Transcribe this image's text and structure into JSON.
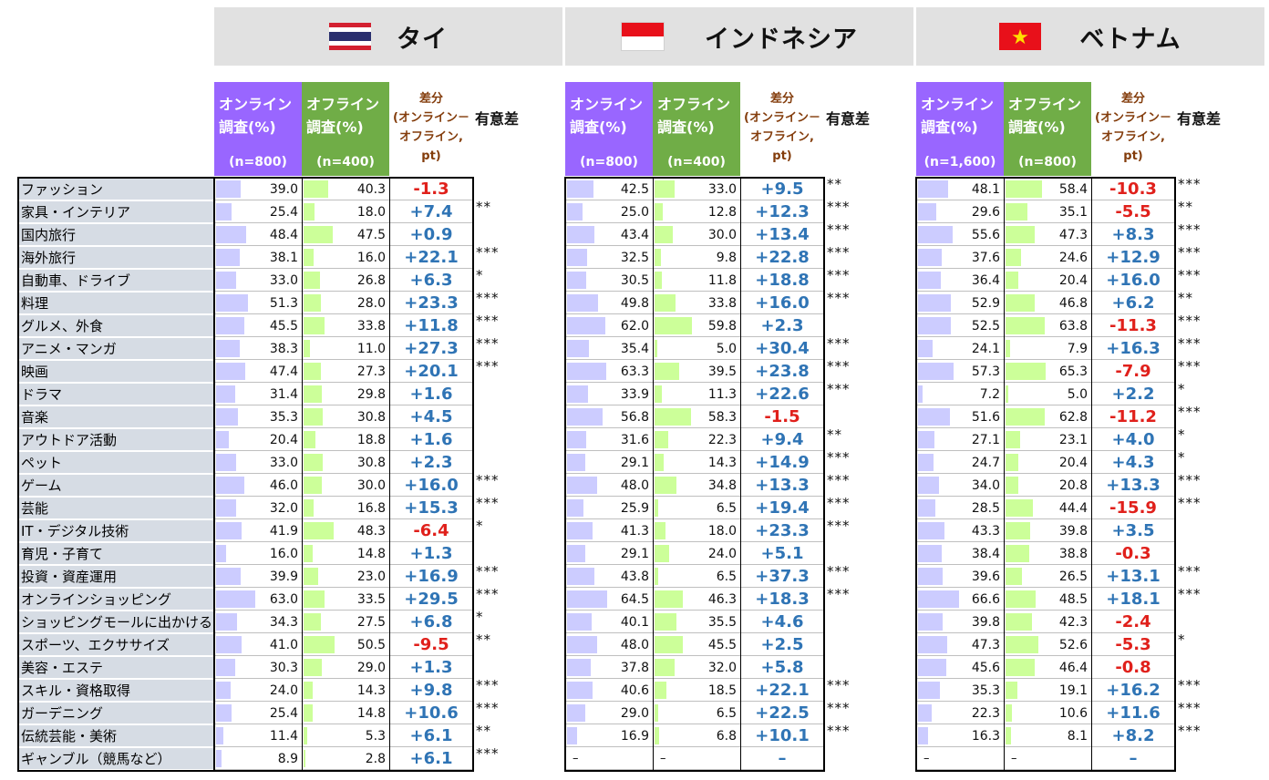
{
  "countries": [
    {
      "key": "thailand",
      "name": "タイ",
      "n_online": "(n=800)",
      "n_offline": "(n=400)"
    },
    {
      "key": "indonesia",
      "name": "インドネシア",
      "n_online": "(n=800)",
      "n_offline": "(n=400)"
    },
    {
      "key": "vietnam",
      "name": "ベトナム",
      "n_online": "(n=1,600)",
      "n_offline": "(n=800)"
    }
  ],
  "headers": {
    "online_l1": "オンライン",
    "online_l2": "調査(%)",
    "offline_l1": "オフライン",
    "offline_l2": "調査(%)",
    "diff_l1": "差分",
    "diff_l2": "(オンライン－",
    "diff_l3": "オフライン,",
    "diff_l4": "pt)",
    "sig": "有意差"
  },
  "colors": {
    "online_header": "#9966ff",
    "offline_header": "#70ad47",
    "online_bar": "#ccccff",
    "offline_bar": "#ccff99",
    "positive": "#2f74b5",
    "negative": "#e0201b",
    "category_bg": "#d6dce4",
    "country_bg": "#e1e1e1"
  },
  "chart_data": {
    "type": "table",
    "categories": [
      "ファッション",
      "家具・インテリア",
      "国内旅行",
      "海外旅行",
      "自動車、ドライブ",
      "料理",
      "グルメ、外食",
      "アニメ・マンガ",
      "映画",
      "ドラマ",
      "音楽",
      "アウトドア活動",
      "ペット",
      "ゲーム",
      "芸能",
      "IT・デジタル技術",
      "育児・子育て",
      "投資・資産運用",
      "オンラインショッピング",
      "ショッピングモールに出かける",
      "スポーツ、エクササイズ",
      "美容・エステ",
      "スキル・資格取得",
      "ガーデニング",
      "伝統芸能・美術",
      "ギャンブル（競馬など）"
    ],
    "thailand": {
      "online": [
        "39.0",
        "25.4",
        "48.4",
        "38.1",
        "33.0",
        "51.3",
        "45.5",
        "38.3",
        "47.4",
        "31.4",
        "35.3",
        "20.4",
        "33.0",
        "46.0",
        "32.0",
        "41.9",
        "16.0",
        "39.9",
        "63.0",
        "34.3",
        "41.0",
        "30.3",
        "24.0",
        "25.4",
        "11.4",
        "8.9"
      ],
      "offline": [
        "40.3",
        "18.0",
        "47.5",
        "16.0",
        "26.8",
        "28.0",
        "33.8",
        "11.0",
        "27.3",
        "29.8",
        "30.8",
        "18.8",
        "30.8",
        "30.0",
        "16.8",
        "48.3",
        "14.8",
        "23.0",
        "33.5",
        "27.5",
        "50.5",
        "29.0",
        "14.3",
        "14.8",
        "5.3",
        "2.8"
      ],
      "diff": [
        "-1.3",
        "+7.4",
        "+0.9",
        "+22.1",
        "+6.3",
        "+23.3",
        "+11.8",
        "+27.3",
        "+20.1",
        "+1.6",
        "+4.5",
        "+1.6",
        "+2.3",
        "+16.0",
        "+15.3",
        "-6.4",
        "+1.3",
        "+16.9",
        "+29.5",
        "+6.8",
        "-9.5",
        "+1.3",
        "+9.8",
        "+10.6",
        "+6.1",
        "+6.1"
      ],
      "sig": [
        "",
        "**",
        "",
        "***",
        "*",
        "***",
        "***",
        "***",
        "***",
        "",
        "",
        "",
        "",
        "***",
        "***",
        "*",
        "",
        "***",
        "***",
        "*",
        "**",
        "",
        "***",
        "***",
        "**",
        "***"
      ]
    },
    "indonesia": {
      "online": [
        "42.5",
        "25.0",
        "43.4",
        "32.5",
        "30.5",
        "49.8",
        "62.0",
        "35.4",
        "63.3",
        "33.9",
        "56.8",
        "31.6",
        "29.1",
        "48.0",
        "25.9",
        "41.3",
        "29.1",
        "43.8",
        "64.5",
        "40.1",
        "48.0",
        "37.8",
        "40.6",
        "29.0",
        "16.9",
        "–"
      ],
      "offline": [
        "33.0",
        "12.8",
        "30.0",
        "9.8",
        "11.8",
        "33.8",
        "59.8",
        "5.0",
        "39.5",
        "11.3",
        "58.3",
        "22.3",
        "14.3",
        "34.8",
        "6.5",
        "18.0",
        "24.0",
        "6.5",
        "46.3",
        "35.5",
        "45.5",
        "32.0",
        "18.5",
        "6.5",
        "6.8",
        "–"
      ],
      "diff": [
        "+9.5",
        "+12.3",
        "+13.4",
        "+22.8",
        "+18.8",
        "+16.0",
        "+2.3",
        "+30.4",
        "+23.8",
        "+22.6",
        "-1.5",
        "+9.4",
        "+14.9",
        "+13.3",
        "+19.4",
        "+23.3",
        "+5.1",
        "+37.3",
        "+18.3",
        "+4.6",
        "+2.5",
        "+5.8",
        "+22.1",
        "+22.5",
        "+10.1",
        "–"
      ],
      "sig": [
        "**",
        "***",
        "***",
        "***",
        "***",
        "***",
        "",
        "***",
        "***",
        "***",
        "",
        "**",
        "***",
        "***",
        "***",
        "***",
        "",
        "***",
        "***",
        "",
        "",
        "",
        "***",
        "***",
        "***",
        ""
      ]
    },
    "vietnam": {
      "online": [
        "48.1",
        "29.6",
        "55.6",
        "37.6",
        "36.4",
        "52.9",
        "52.5",
        "24.1",
        "57.3",
        "7.2",
        "51.6",
        "27.1",
        "24.7",
        "34.0",
        "28.5",
        "43.3",
        "38.4",
        "39.6",
        "66.6",
        "39.8",
        "47.3",
        "45.6",
        "35.3",
        "22.3",
        "16.3",
        "–"
      ],
      "offline": [
        "58.4",
        "35.1",
        "47.3",
        "24.6",
        "20.4",
        "46.8",
        "63.8",
        "7.9",
        "65.3",
        "5.0",
        "62.8",
        "23.1",
        "20.4",
        "20.8",
        "44.4",
        "39.8",
        "38.8",
        "26.5",
        "48.5",
        "42.3",
        "52.6",
        "46.4",
        "19.1",
        "10.6",
        "8.1",
        "–"
      ],
      "diff": [
        "-10.3",
        "-5.5",
        "+8.3",
        "+12.9",
        "+16.0",
        "+6.2",
        "-11.3",
        "+16.3",
        "-7.9",
        "+2.2",
        "-11.2",
        "+4.0",
        "+4.3",
        "+13.3",
        "-15.9",
        "+3.5",
        "-0.3",
        "+13.1",
        "+18.1",
        "-2.4",
        "-5.3",
        "-0.8",
        "+16.2",
        "+11.6",
        "+8.2",
        "–"
      ],
      "sig": [
        "***",
        "**",
        "***",
        "***",
        "***",
        "**",
        "***",
        "***",
        "***",
        "*",
        "***",
        "*",
        "*",
        "***",
        "***",
        "",
        "",
        "***",
        "***",
        "",
        "*",
        "",
        "***",
        "***",
        "***",
        ""
      ]
    }
  }
}
